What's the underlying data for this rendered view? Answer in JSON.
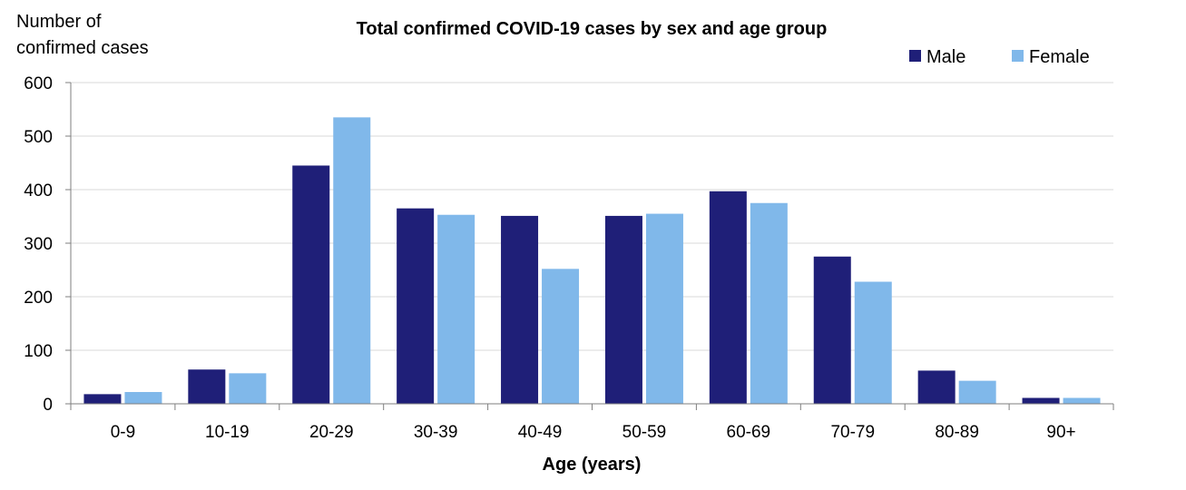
{
  "chart_data": {
    "type": "bar",
    "title": "Total confirmed COVID-19 cases by sex and age group",
    "ylabel_lines": [
      "Number of",
      "confirmed cases"
    ],
    "xlabel": "Age (years)",
    "categories": [
      "0-9",
      "10-19",
      "20-29",
      "30-39",
      "40-49",
      "50-59",
      "60-69",
      "70-79",
      "80-89",
      "90+"
    ],
    "series": [
      {
        "name": "Male",
        "color": "#1f1f78",
        "values": [
          18,
          64,
          445,
          365,
          351,
          351,
          397,
          275,
          62,
          11
        ]
      },
      {
        "name": "Female",
        "color": "#80b8ea",
        "values": [
          22,
          57,
          535,
          353,
          252,
          355,
          375,
          228,
          43,
          11
        ]
      }
    ],
    "ylim": [
      0,
      600
    ],
    "yticks": [
      0,
      100,
      200,
      300,
      400,
      500,
      600
    ],
    "grid": true,
    "legend_position": "top-right"
  }
}
